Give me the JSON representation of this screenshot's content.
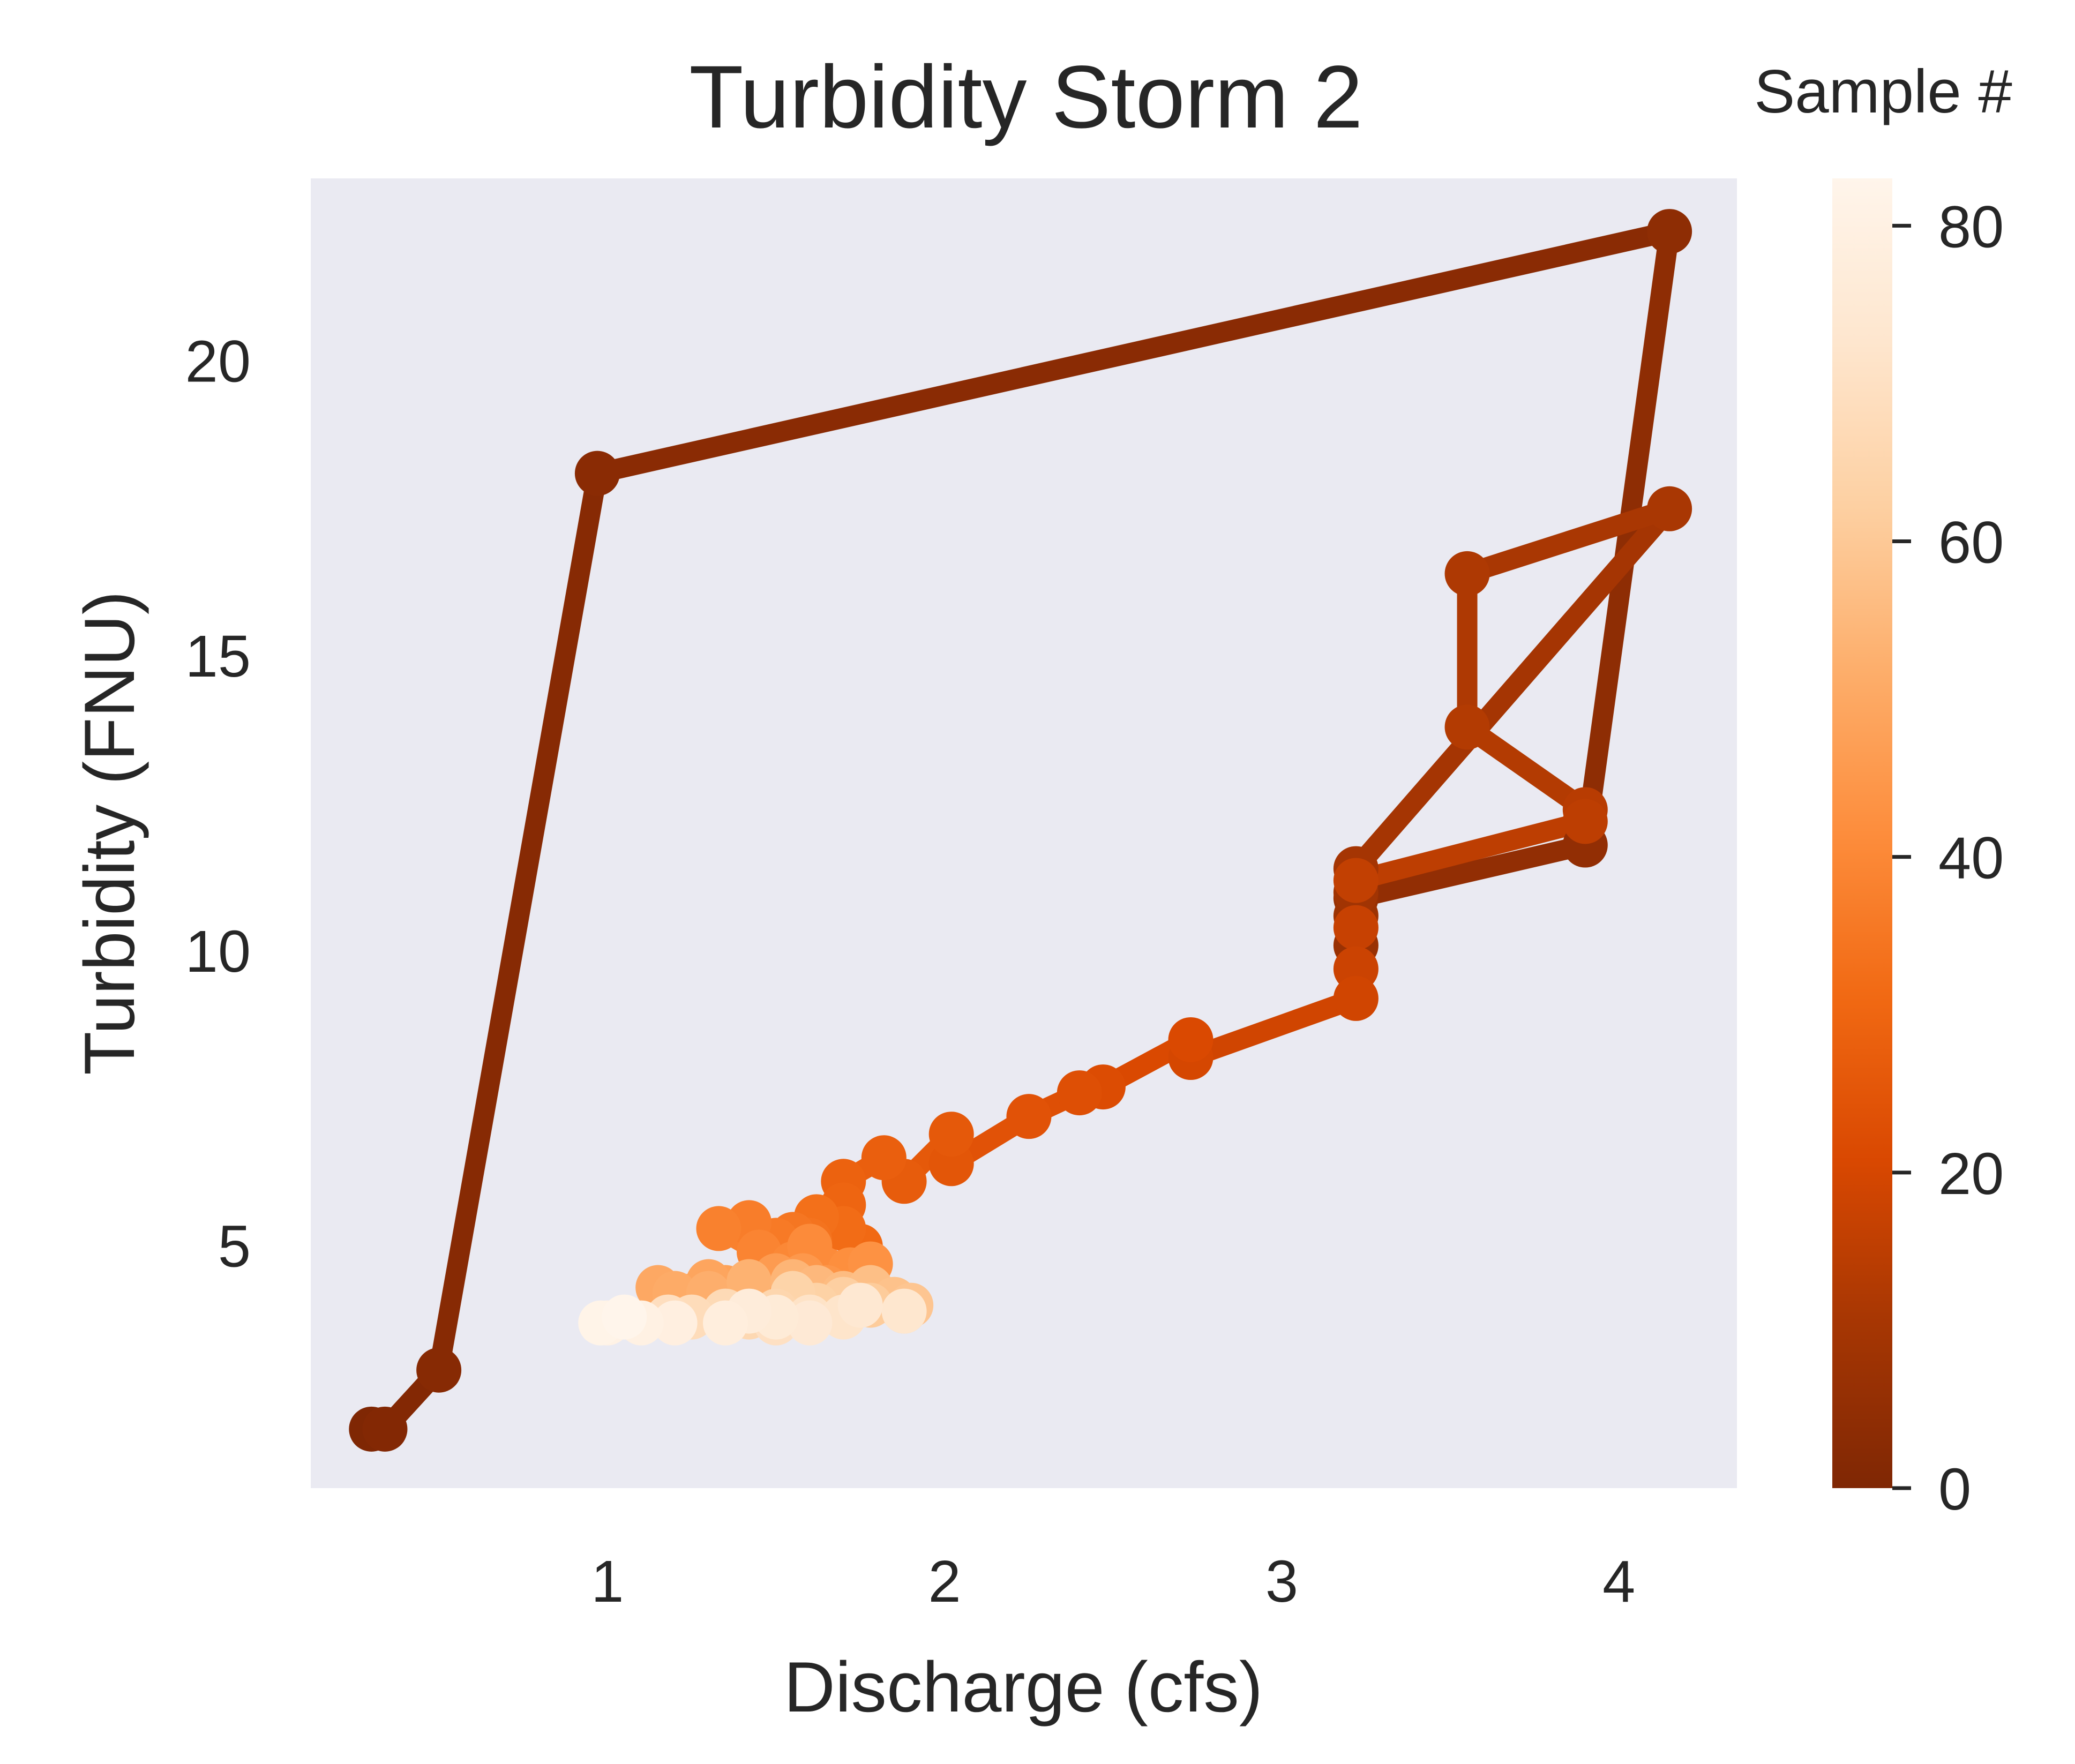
{
  "chart_data": {
    "type": "scatter",
    "title": "Turbidity Storm 2",
    "xlabel": "Discharge (cfs)",
    "ylabel": "Turbidity (FNU)",
    "xlim": [
      0.12,
      4.35
    ],
    "ylim": [
      0.9,
      23.1
    ],
    "x_ticks": [
      "1",
      "2",
      "3",
      "4"
    ],
    "y_ticks": [
      "5",
      "10",
      "15",
      "20"
    ],
    "grid": false,
    "colorbar": {
      "title": "Sample #",
      "range": [
        0,
        83
      ],
      "ticks": [
        "0",
        "20",
        "40",
        "60",
        "80"
      ],
      "colormap": "Oranges_r",
      "stops": [
        "#7f2704",
        "#a63603",
        "#d94801",
        "#f16913",
        "#fd8d3c",
        "#fdae6b",
        "#fdd0a2",
        "#fee6ce",
        "#fff5eb"
      ]
    },
    "background_color": "#eaeaf2",
    "series": [
      {
        "x": [
          0.3,
          0.34,
          0.5,
          0.97,
          4.15,
          3.9,
          3.22,
          3.22,
          3.22,
          3.22,
          3.22,
          4.15,
          3.55,
          3.55,
          3.9,
          3.9,
          3.22,
          3.22,
          3.22,
          3.22,
          2.73,
          2.73,
          2.47,
          2.4,
          2.25,
          2.02,
          2.02,
          1.88,
          1.82,
          1.7,
          1.7,
          1.75,
          1.7,
          1.62,
          1.6,
          1.55,
          1.5,
          1.42,
          1.33,
          1.45,
          1.55,
          1.6,
          1.72,
          1.78,
          1.65,
          1.58,
          1.5,
          1.45,
          1.35,
          1.3,
          1.15,
          1.2,
          1.3,
          1.42,
          1.55,
          1.62,
          1.7,
          1.78,
          1.85,
          1.9,
          1.88,
          1.78,
          1.7,
          1.62,
          1.55,
          1.5,
          1.42,
          1.35,
          1.25,
          1.18,
          1.5,
          1.6,
          1.7,
          1.88,
          1.75,
          1.6,
          1.5,
          1.42,
          1.35,
          1.2,
          1.1,
          1.0,
          0.98,
          1.05
        ],
        "y": [
          1.9,
          1.9,
          2.9,
          18.1,
          22.2,
          11.8,
          10.9,
          10.1,
          10.6,
          11.0,
          11.4,
          17.5,
          16.4,
          13.8,
          12.4,
          12.2,
          11.2,
          10.4,
          9.7,
          9.2,
          8.2,
          8.5,
          7.7,
          7.6,
          7.2,
          6.4,
          6.9,
          6.1,
          6.5,
          6.1,
          5.7,
          5.0,
          5.3,
          5.5,
          5.1,
          5.2,
          5.1,
          5.4,
          5.3,
          4.9,
          4.7,
          5.0,
          4.6,
          4.7,
          4.3,
          4.5,
          4.5,
          4.2,
          4.3,
          4.4,
          4.3,
          4.2,
          4.2,
          4.4,
          4.4,
          4.3,
          4.2,
          4.3,
          4.1,
          4.0,
          3.9,
          4.0,
          4.1,
          4.0,
          4.2,
          3.9,
          3.8,
          3.9,
          3.8,
          3.8,
          3.7,
          3.8,
          3.8,
          3.9,
          4.0,
          3.7,
          3.8,
          3.9,
          3.7,
          3.7,
          3.7,
          3.7,
          3.7,
          3.8
        ]
      }
    ]
  }
}
